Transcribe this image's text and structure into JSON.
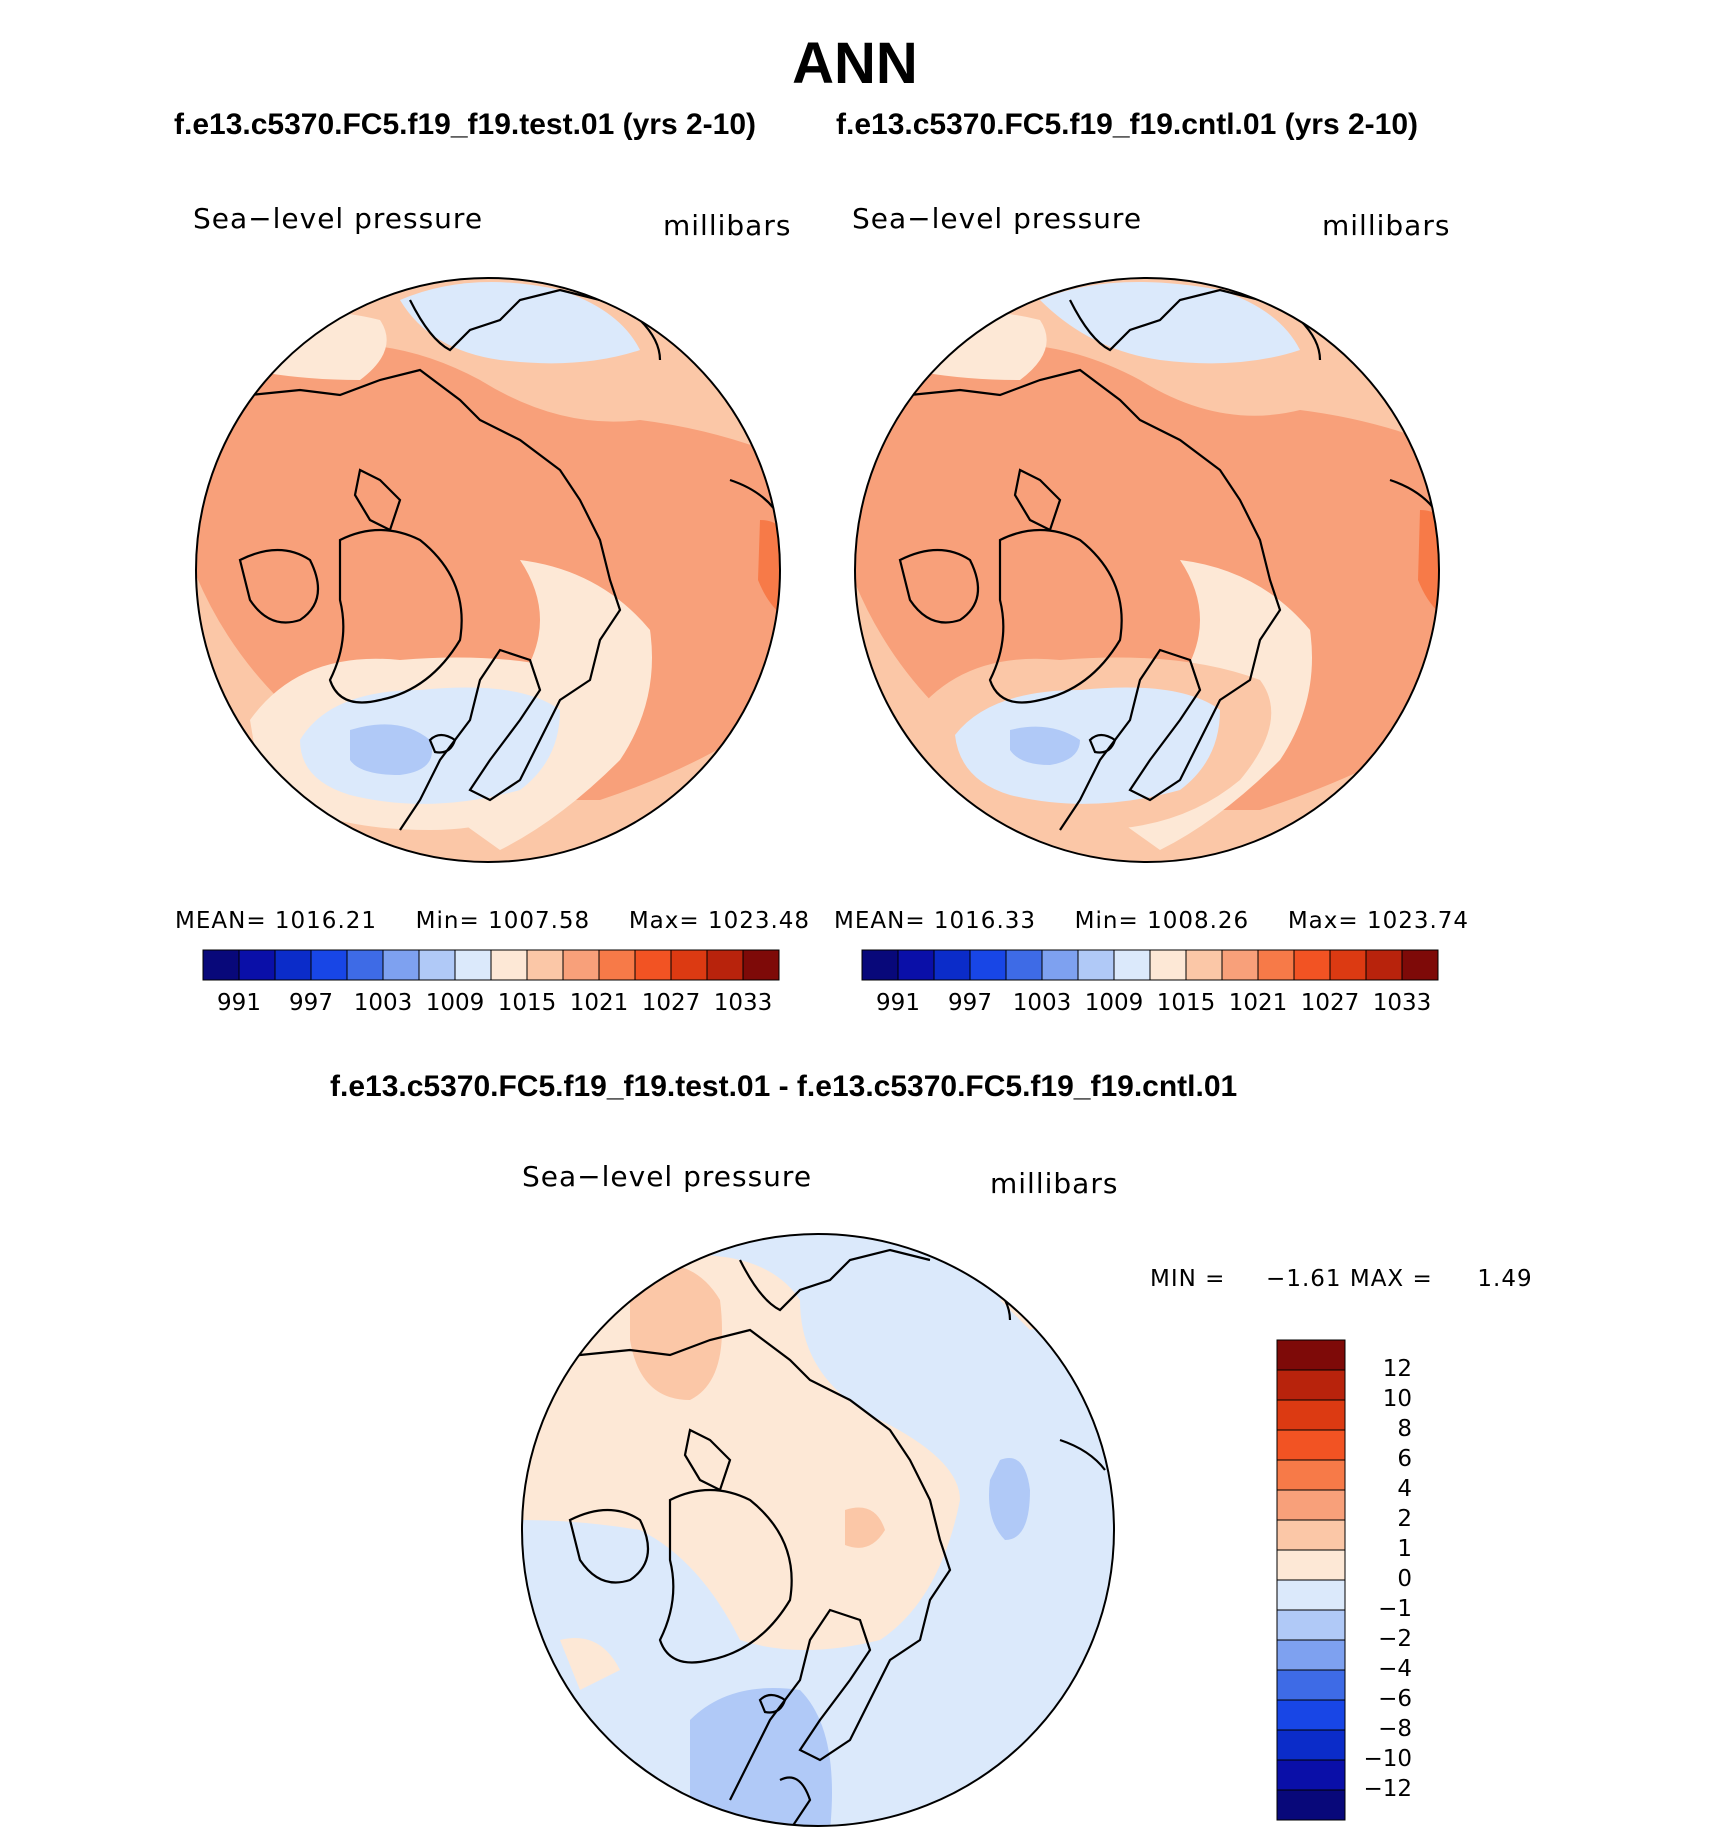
{
  "page": {
    "title": "ANN",
    "test_case": "f.e13.c5370.FC5.f19_f19.test.01 (yrs 2-10)",
    "control_case": "f.e13.c5370.FC5.f19_f19.cntl.01 (yrs 2-10)",
    "diff_title": "f.e13.c5370.FC5.f19_f19.test.01 - f.e13.c5370.FC5.f19_f19.cntl.01"
  },
  "chart_data": [
    {
      "type": "heatmap",
      "panel": "test",
      "variable": "Sea−level pressure",
      "units": "millibars",
      "projection": "north polar stereographic",
      "stats": {
        "mean_label": "MEAN=",
        "mean": "1016.21",
        "min_label": "Min=",
        "min": "1007.58",
        "max_label": "Max=",
        "max": "1023.48"
      },
      "colorbar": {
        "orientation": "horizontal",
        "tick_labels": [
          "991",
          "997",
          "1003",
          "1009",
          "1015",
          "1021",
          "1027",
          "1033"
        ],
        "colors": [
          "#08087a",
          "#0a0fa8",
          "#0b2cc9",
          "#1846e6",
          "#3e6be6",
          "#7ea1f0",
          "#b0c9f7",
          "#dbe9fb",
          "#fde8d6",
          "#fbc7a7",
          "#f8a07a",
          "#f77a48",
          "#f25323",
          "#dc3a12",
          "#b8230c",
          "#7e0a08"
        ]
      }
    },
    {
      "type": "heatmap",
      "panel": "control",
      "variable": "Sea−level pressure",
      "units": "millibars",
      "projection": "north polar stereographic",
      "stats": {
        "mean_label": "MEAN=",
        "mean": "1016.33",
        "min_label": "Min=",
        "min": "1008.26",
        "max_label": "Max=",
        "max": "1023.74"
      },
      "colorbar": {
        "orientation": "horizontal",
        "tick_labels": [
          "991",
          "997",
          "1003",
          "1009",
          "1015",
          "1021",
          "1027",
          "1033"
        ],
        "colors": [
          "#08087a",
          "#0a0fa8",
          "#0b2cc9",
          "#1846e6",
          "#3e6be6",
          "#7ea1f0",
          "#b0c9f7",
          "#dbe9fb",
          "#fde8d6",
          "#fbc7a7",
          "#f8a07a",
          "#f77a48",
          "#f25323",
          "#dc3a12",
          "#b8230c",
          "#7e0a08"
        ]
      }
    },
    {
      "type": "heatmap",
      "panel": "difference",
      "variable": "Sea−level pressure",
      "units": "millibars",
      "projection": "north polar stereographic",
      "stats": {
        "min_label": "MIN =",
        "min": "−1.61",
        "max_label": "MAX =",
        "max": "1.49"
      },
      "colorbar": {
        "orientation": "vertical",
        "tick_labels": [
          "12",
          "10",
          "8",
          "6",
          "4",
          "2",
          "1",
          "0",
          "−1",
          "−2",
          "−4",
          "−6",
          "−8",
          "−10",
          "−12"
        ],
        "colors": [
          "#7e0a08",
          "#b8230c",
          "#dc3a12",
          "#f25323",
          "#f77a48",
          "#f8a07a",
          "#fbc7a7",
          "#fde8d6",
          "#dbe9fb",
          "#b0c9f7",
          "#7ea1f0",
          "#3e6be6",
          "#1846e6",
          "#0b2cc9",
          "#0a0fa8",
          "#08087a"
        ]
      }
    }
  ]
}
